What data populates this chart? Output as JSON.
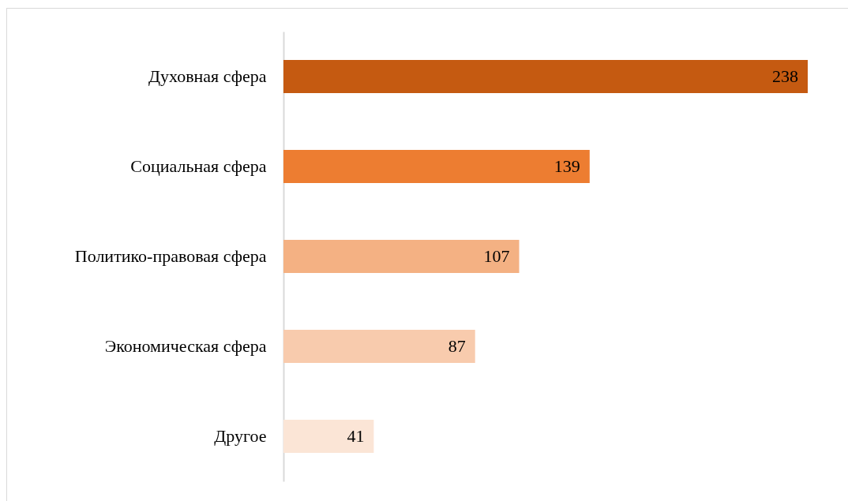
{
  "chart_data": {
    "type": "bar",
    "orientation": "horizontal",
    "categories": [
      "Духовная сфера",
      "Социальная сфера",
      "Политико-правовая сфера",
      "Экономическая сфера",
      "Другое"
    ],
    "values": [
      238,
      139,
      107,
      87,
      41
    ],
    "colors": [
      "#c55a11",
      "#ed7d31",
      "#f4b183",
      "#f8cbad",
      "#fbe5d6"
    ],
    "data_labels": true
  }
}
